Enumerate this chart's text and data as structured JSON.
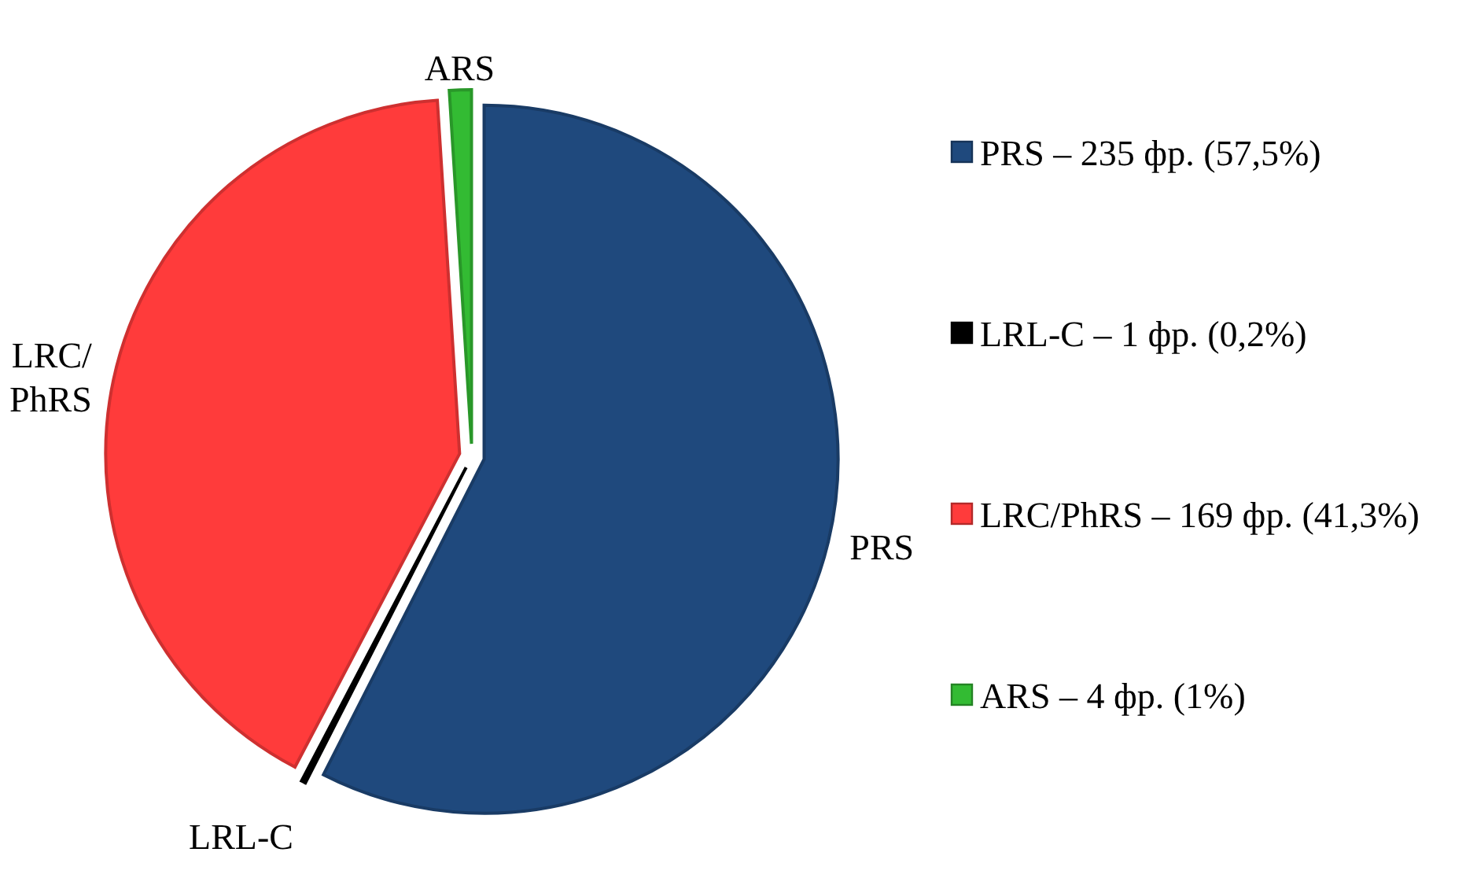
{
  "chart_data": {
    "type": "pie",
    "categories": [
      "PRS – 235 фр. (57,5%)",
      "LRL-C – 1 фр. (0,2%)",
      "LRC/PhRS – 169 фр. (41,3%)",
      "ARS – 4 фр. (1%)"
    ],
    "values": [
      57.5,
      0.2,
      41.3,
      1
    ],
    "colors": [
      "#1f497d",
      "#000000",
      "#ff3b3b",
      "#33bb33"
    ],
    "annotations": [
      "PRS",
      "LRL-C",
      "LRC/PhRS",
      "ARS"
    ],
    "legend": "right"
  }
}
